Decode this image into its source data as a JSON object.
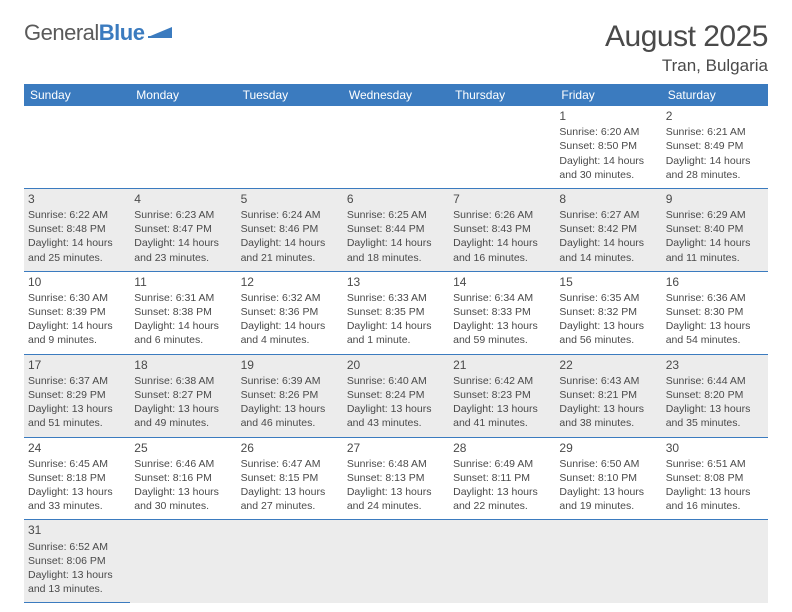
{
  "brand": {
    "name_a": "General",
    "name_b": "Blue"
  },
  "title": "August 2025",
  "location": "Tran, Bulgaria",
  "colors": {
    "accent": "#3b7bbf",
    "text": "#4a4a4a",
    "shade": "#ececec",
    "white": "#ffffff"
  },
  "weekdays": [
    "Sunday",
    "Monday",
    "Tuesday",
    "Wednesday",
    "Thursday",
    "Friday",
    "Saturday"
  ],
  "weeks": [
    [
      null,
      null,
      null,
      null,
      null,
      {
        "n": "1",
        "sr": "Sunrise: 6:20 AM",
        "ss": "Sunset: 8:50 PM",
        "dl": "Daylight: 14 hours and 30 minutes."
      },
      {
        "n": "2",
        "sr": "Sunrise: 6:21 AM",
        "ss": "Sunset: 8:49 PM",
        "dl": "Daylight: 14 hours and 28 minutes."
      }
    ],
    [
      {
        "n": "3",
        "sr": "Sunrise: 6:22 AM",
        "ss": "Sunset: 8:48 PM",
        "dl": "Daylight: 14 hours and 25 minutes."
      },
      {
        "n": "4",
        "sr": "Sunrise: 6:23 AM",
        "ss": "Sunset: 8:47 PM",
        "dl": "Daylight: 14 hours and 23 minutes."
      },
      {
        "n": "5",
        "sr": "Sunrise: 6:24 AM",
        "ss": "Sunset: 8:46 PM",
        "dl": "Daylight: 14 hours and 21 minutes."
      },
      {
        "n": "6",
        "sr": "Sunrise: 6:25 AM",
        "ss": "Sunset: 8:44 PM",
        "dl": "Daylight: 14 hours and 18 minutes."
      },
      {
        "n": "7",
        "sr": "Sunrise: 6:26 AM",
        "ss": "Sunset: 8:43 PM",
        "dl": "Daylight: 14 hours and 16 minutes."
      },
      {
        "n": "8",
        "sr": "Sunrise: 6:27 AM",
        "ss": "Sunset: 8:42 PM",
        "dl": "Daylight: 14 hours and 14 minutes."
      },
      {
        "n": "9",
        "sr": "Sunrise: 6:29 AM",
        "ss": "Sunset: 8:40 PM",
        "dl": "Daylight: 14 hours and 11 minutes."
      }
    ],
    [
      {
        "n": "10",
        "sr": "Sunrise: 6:30 AM",
        "ss": "Sunset: 8:39 PM",
        "dl": "Daylight: 14 hours and 9 minutes."
      },
      {
        "n": "11",
        "sr": "Sunrise: 6:31 AM",
        "ss": "Sunset: 8:38 PM",
        "dl": "Daylight: 14 hours and 6 minutes."
      },
      {
        "n": "12",
        "sr": "Sunrise: 6:32 AM",
        "ss": "Sunset: 8:36 PM",
        "dl": "Daylight: 14 hours and 4 minutes."
      },
      {
        "n": "13",
        "sr": "Sunrise: 6:33 AM",
        "ss": "Sunset: 8:35 PM",
        "dl": "Daylight: 14 hours and 1 minute."
      },
      {
        "n": "14",
        "sr": "Sunrise: 6:34 AM",
        "ss": "Sunset: 8:33 PM",
        "dl": "Daylight: 13 hours and 59 minutes."
      },
      {
        "n": "15",
        "sr": "Sunrise: 6:35 AM",
        "ss": "Sunset: 8:32 PM",
        "dl": "Daylight: 13 hours and 56 minutes."
      },
      {
        "n": "16",
        "sr": "Sunrise: 6:36 AM",
        "ss": "Sunset: 8:30 PM",
        "dl": "Daylight: 13 hours and 54 minutes."
      }
    ],
    [
      {
        "n": "17",
        "sr": "Sunrise: 6:37 AM",
        "ss": "Sunset: 8:29 PM",
        "dl": "Daylight: 13 hours and 51 minutes."
      },
      {
        "n": "18",
        "sr": "Sunrise: 6:38 AM",
        "ss": "Sunset: 8:27 PM",
        "dl": "Daylight: 13 hours and 49 minutes."
      },
      {
        "n": "19",
        "sr": "Sunrise: 6:39 AM",
        "ss": "Sunset: 8:26 PM",
        "dl": "Daylight: 13 hours and 46 minutes."
      },
      {
        "n": "20",
        "sr": "Sunrise: 6:40 AM",
        "ss": "Sunset: 8:24 PM",
        "dl": "Daylight: 13 hours and 43 minutes."
      },
      {
        "n": "21",
        "sr": "Sunrise: 6:42 AM",
        "ss": "Sunset: 8:23 PM",
        "dl": "Daylight: 13 hours and 41 minutes."
      },
      {
        "n": "22",
        "sr": "Sunrise: 6:43 AM",
        "ss": "Sunset: 8:21 PM",
        "dl": "Daylight: 13 hours and 38 minutes."
      },
      {
        "n": "23",
        "sr": "Sunrise: 6:44 AM",
        "ss": "Sunset: 8:20 PM",
        "dl": "Daylight: 13 hours and 35 minutes."
      }
    ],
    [
      {
        "n": "24",
        "sr": "Sunrise: 6:45 AM",
        "ss": "Sunset: 8:18 PM",
        "dl": "Daylight: 13 hours and 33 minutes."
      },
      {
        "n": "25",
        "sr": "Sunrise: 6:46 AM",
        "ss": "Sunset: 8:16 PM",
        "dl": "Daylight: 13 hours and 30 minutes."
      },
      {
        "n": "26",
        "sr": "Sunrise: 6:47 AM",
        "ss": "Sunset: 8:15 PM",
        "dl": "Daylight: 13 hours and 27 minutes."
      },
      {
        "n": "27",
        "sr": "Sunrise: 6:48 AM",
        "ss": "Sunset: 8:13 PM",
        "dl": "Daylight: 13 hours and 24 minutes."
      },
      {
        "n": "28",
        "sr": "Sunrise: 6:49 AM",
        "ss": "Sunset: 8:11 PM",
        "dl": "Daylight: 13 hours and 22 minutes."
      },
      {
        "n": "29",
        "sr": "Sunrise: 6:50 AM",
        "ss": "Sunset: 8:10 PM",
        "dl": "Daylight: 13 hours and 19 minutes."
      },
      {
        "n": "30",
        "sr": "Sunrise: 6:51 AM",
        "ss": "Sunset: 8:08 PM",
        "dl": "Daylight: 13 hours and 16 minutes."
      }
    ],
    [
      {
        "n": "31",
        "sr": "Sunrise: 6:52 AM",
        "ss": "Sunset: 8:06 PM",
        "dl": "Daylight: 13 hours and 13 minutes."
      },
      null,
      null,
      null,
      null,
      null,
      null
    ]
  ]
}
